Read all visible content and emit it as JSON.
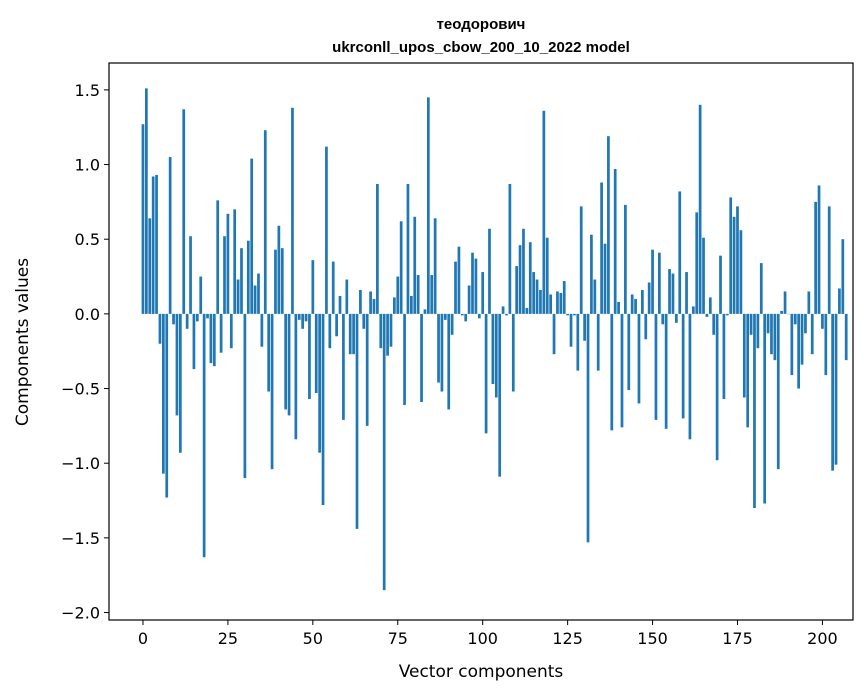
{
  "chart_data": {
    "type": "bar",
    "title": "теодорович",
    "subtitle": "ukrconll_upos_cbow_200_10_2022 model",
    "xlabel": "Vector components",
    "ylabel": "Components values",
    "xlim": [
      -10,
      209
    ],
    "ylim": [
      -2.05,
      1.68
    ],
    "xticks": [
      0,
      25,
      50,
      75,
      100,
      125,
      150,
      175,
      200
    ],
    "yticks": [
      -2.0,
      -1.5,
      -1.0,
      -0.5,
      0.0,
      0.5,
      1.0,
      1.5
    ],
    "ytick_labels": [
      "−2.0",
      "−1.5",
      "−1.0",
      "−0.5",
      "0.0",
      "0.5",
      "1.0",
      "1.5"
    ],
    "bar_color": "#1f77b4",
    "grid": false,
    "values": [
      1.27,
      1.51,
      0.64,
      0.92,
      0.93,
      -0.2,
      -1.07,
      -1.23,
      1.05,
      -0.07,
      -0.68,
      -0.93,
      1.37,
      -0.1,
      0.52,
      -0.37,
      -0.05,
      0.25,
      -1.63,
      -0.03,
      -0.33,
      -0.35,
      0.76,
      -0.26,
      0.52,
      0.67,
      -0.23,
      0.7,
      0.23,
      0.44,
      -1.1,
      0.49,
      1.04,
      0.19,
      0.27,
      -0.22,
      1.23,
      -0.52,
      -1.04,
      0.43,
      0.59,
      0.44,
      -0.64,
      -0.68,
      1.38,
      -0.84,
      -0.04,
      -0.1,
      -0.05,
      -0.57,
      0.36,
      -0.53,
      -0.93,
      -1.28,
      1.12,
      -0.23,
      0.35,
      -0.15,
      0.12,
      -0.71,
      0.23,
      -0.27,
      -0.27,
      -1.44,
      0.16,
      -0.1,
      -0.75,
      0.15,
      0.1,
      0.87,
      -0.23,
      -1.85,
      -0.28,
      -0.22,
      0.11,
      0.25,
      0.62,
      -0.61,
      0.87,
      0.12,
      0.65,
      0.26,
      -0.59,
      0.03,
      1.45,
      0.26,
      0.64,
      -0.46,
      -0.52,
      -0.04,
      -0.64,
      -0.14,
      0.35,
      0.45,
      -0.01,
      -0.05,
      0.19,
      0.41,
      0.37,
      -0.03,
      0.28,
      -0.8,
      0.57,
      -0.47,
      -0.56,
      -1.09,
      0.05,
      -0.01,
      0.87,
      -0.52,
      0.32,
      0.46,
      0.57,
      0.04,
      0.48,
      0.28,
      0.23,
      0.16,
      1.36,
      0.51,
      0.13,
      -0.27,
      0.15,
      0.14,
      0.22,
      -0.01,
      -0.22,
      -0.01,
      -0.38,
      0.72,
      -0.18,
      -1.53,
      0.53,
      0.23,
      -0.38,
      0.88,
      0.47,
      1.19,
      -0.78,
      0.97,
      0.08,
      -0.76,
      0.73,
      -0.51,
      0.13,
      0.1,
      -0.6,
      0.16,
      -0.17,
      0.21,
      0.43,
      -0.71,
      0.41,
      -0.07,
      -0.77,
      0.3,
      0.27,
      -0.06,
      0.82,
      -0.7,
      0.28,
      -0.84,
      0.05,
      0.68,
      1.4,
      0.51,
      -0.02,
      0.11,
      -0.14,
      -0.98,
      0.39,
      -0.57,
      -0.01,
      0.78,
      0.65,
      0.72,
      0.56,
      -0.56,
      -0.76,
      -0.14,
      -1.3,
      -0.23,
      0.34,
      -1.27,
      -0.13,
      -0.27,
      -0.31,
      -1.04,
      0.02,
      0.15,
      0.0,
      -0.41,
      -0.07,
      -0.5,
      -0.34,
      -0.13,
      0.15,
      -0.27,
      0.75,
      0.86,
      -0.1,
      -0.41,
      0.72,
      -1.05,
      -1.01,
      0.17,
      0.5,
      -0.31
    ]
  }
}
